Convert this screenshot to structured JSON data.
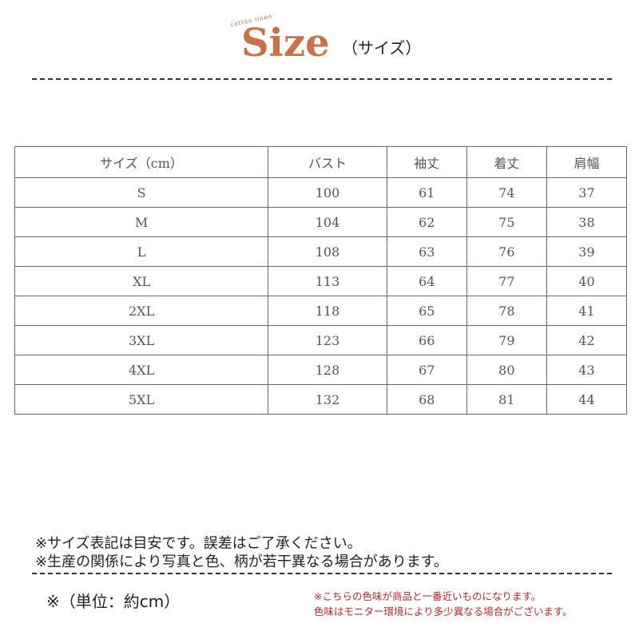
{
  "header": {
    "logo_small": "cotton linen",
    "title": "Size",
    "subtitle": "（サイズ）"
  },
  "table": {
    "columns": [
      "サイズ（cm）",
      "バスト",
      "袖丈",
      "着丈",
      "肩幅"
    ],
    "rows": [
      [
        "S",
        "100",
        "61",
        "74",
        "37"
      ],
      [
        "M",
        "104",
        "62",
        "75",
        "38"
      ],
      [
        "L",
        "108",
        "63",
        "76",
        "39"
      ],
      [
        "XL",
        "113",
        "64",
        "77",
        "40"
      ],
      [
        "2XL",
        "118",
        "65",
        "78",
        "41"
      ],
      [
        "3XL",
        "123",
        "66",
        "79",
        "42"
      ],
      [
        "4XL",
        "128",
        "67",
        "80",
        "43"
      ],
      [
        "5XL",
        "132",
        "68",
        "81",
        "44"
      ]
    ]
  },
  "notes": [
    "※サイズ表記は目安です。誤差はご了承ください。",
    "※生産の関係により写真と色、柄が若干異なる場合があります。"
  ],
  "unit": "※（単位：約cm）",
  "color_notes": [
    "※こちらの色味が商品と一番近いものになります。",
    "色味はモニター環境により多少異なる場合がございます。"
  ],
  "colors": {
    "logo": "#c8724a",
    "warning": "#c0262a"
  }
}
